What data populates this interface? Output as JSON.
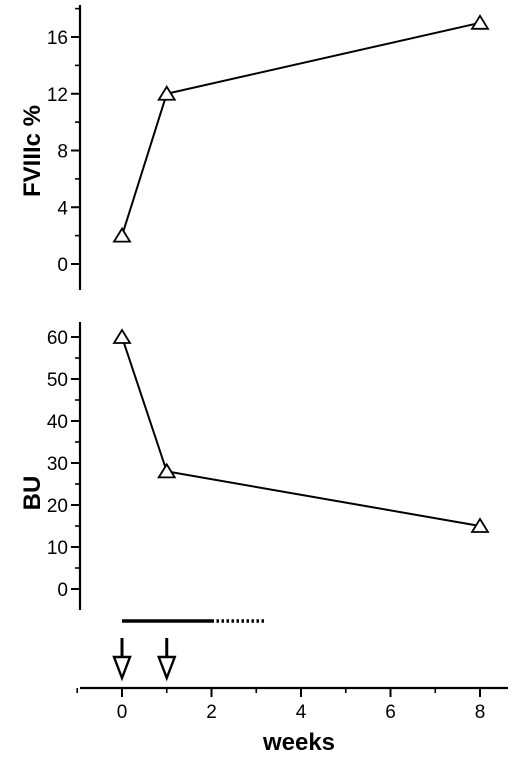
{
  "chart_data": [
    {
      "type": "line",
      "ylabel": "FVIIIc %",
      "ylim": [
        0,
        16
      ],
      "yticks": [
        0,
        4,
        8,
        12,
        16
      ],
      "ytick_labels": [
        "0",
        "4",
        "8",
        "12",
        "16"
      ],
      "marker": "open-triangle",
      "series": [
        {
          "x": [
            0,
            1,
            8
          ],
          "values": [
            2,
            12,
            17
          ]
        }
      ]
    },
    {
      "type": "line",
      "ylabel": "BU",
      "ylim": [
        0,
        60
      ],
      "yticks": [
        0,
        10,
        20,
        30,
        40,
        50,
        60
      ],
      "ytick_labels": [
        "0",
        "10",
        "20",
        "30",
        "40",
        "50",
        "60"
      ],
      "marker": "open-triangle",
      "series": [
        {
          "x": [
            0,
            1,
            8
          ],
          "values": [
            60,
            28,
            15
          ]
        }
      ]
    }
  ],
  "x_axis": {
    "label": "weeks",
    "xlim": [
      0,
      8
    ],
    "ticks": [
      0,
      2,
      4,
      6,
      8
    ],
    "tick_labels": [
      "0",
      "2",
      "4",
      "6",
      "8"
    ]
  },
  "treatment": {
    "solid_bar_weeks": [
      0,
      2
    ],
    "dotted_bar_weeks": [
      2,
      3.2
    ],
    "dose_arrow_weeks": [
      0,
      1
    ]
  }
}
